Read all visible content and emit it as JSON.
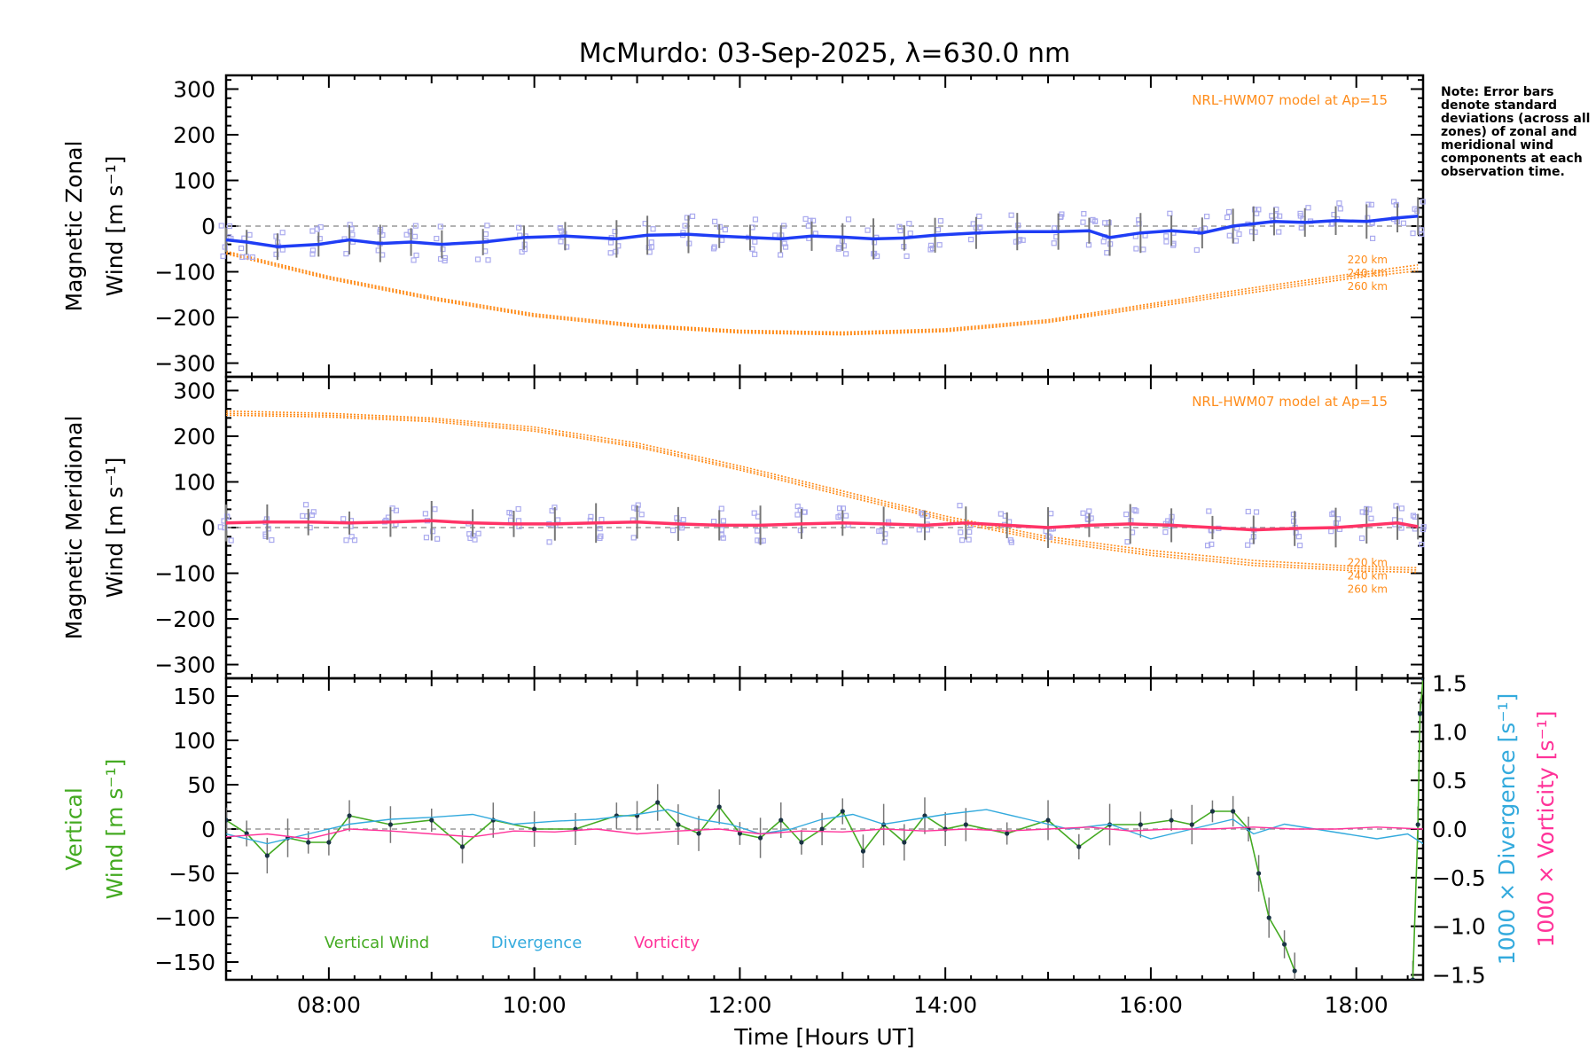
{
  "title": "McMurdo: 03-Sep-2025, λ=630.0 nm",
  "note": "Note: Error bars denote standard deviations (across all zones) of zonal and meridional wind components at each observation time.",
  "colors": {
    "zonal": "#1f3df5",
    "meridional": "#ff3366",
    "model": "#ff8c1a",
    "scatter": "#aaaaee",
    "vertical": "#44aa22",
    "divergence": "#33aadd",
    "vorticity": "#ff3399",
    "errorbar": "#777777",
    "zero": "#999999"
  },
  "chart_data": [
    {
      "type": "line",
      "name": "zonal",
      "ylabel": "Magnetic Zonal Wind [m s⁻¹]",
      "ylabel_lines": [
        "Magnetic Zonal",
        "Wind [m s⁻¹]"
      ],
      "xlim": [
        7.0,
        18.65
      ],
      "ylim": [
        -330,
        330
      ],
      "yticks": [
        -300,
        -200,
        -100,
        0,
        100,
        200,
        300
      ],
      "yticklabels": [
        "−300",
        "−200",
        "−100",
        "0",
        "100",
        "200",
        "300"
      ],
      "model_label": "NRL-HWM07 model at Ap=15",
      "model_levels": [
        "220 km",
        "240 km",
        "260 km"
      ],
      "model_curves": [
        {
          "name": "220 km",
          "x": [
            7.0,
            8.0,
            9.0,
            10.0,
            11.0,
            12.0,
            13.0,
            14.0,
            15.0,
            16.0,
            17.0,
            18.0,
            18.6
          ],
          "y": [
            -55,
            -110,
            -155,
            -192,
            -215,
            -228,
            -232,
            -225,
            -205,
            -170,
            -135,
            -103,
            -85
          ]
        },
        {
          "name": "240 km",
          "x": [
            7.0,
            8.0,
            9.0,
            10.0,
            11.0,
            12.0,
            13.0,
            14.0,
            15.0,
            16.0,
            17.0,
            18.0,
            18.6
          ],
          "y": [
            -58,
            -113,
            -158,
            -195,
            -218,
            -231,
            -235,
            -228,
            -208,
            -174,
            -140,
            -108,
            -92
          ]
        },
        {
          "name": "260 km",
          "x": [
            7.0,
            8.0,
            9.0,
            10.0,
            11.0,
            12.0,
            13.0,
            14.0,
            15.0,
            16.0,
            17.0,
            18.0,
            18.6
          ],
          "y": [
            -61,
            -116,
            -161,
            -198,
            -221,
            -234,
            -238,
            -231,
            -211,
            -178,
            -145,
            -113,
            -98
          ]
        }
      ],
      "series": [
        {
          "name": "zonal wind",
          "x": [
            7.0,
            7.2,
            7.5,
            7.9,
            8.2,
            8.5,
            8.8,
            9.1,
            9.5,
            9.9,
            10.3,
            10.8,
            11.1,
            11.5,
            11.8,
            12.1,
            12.4,
            12.7,
            13.0,
            13.3,
            13.6,
            13.9,
            14.3,
            14.7,
            15.1,
            15.4,
            15.6,
            15.9,
            16.2,
            16.5,
            16.8,
            17.0,
            17.2,
            17.5,
            17.8,
            18.1,
            18.4,
            18.6
          ],
          "y": [
            -30,
            -35,
            -45,
            -40,
            -30,
            -38,
            -35,
            -40,
            -35,
            -25,
            -22,
            -28,
            -20,
            -18,
            -22,
            -25,
            -28,
            -22,
            -24,
            -28,
            -26,
            -20,
            -15,
            -12,
            -12,
            -10,
            -25,
            -15,
            -10,
            -15,
            0,
            5,
            10,
            8,
            12,
            10,
            18,
            22
          ]
        }
      ]
    },
    {
      "type": "line",
      "name": "meridional",
      "ylabel": "Magnetic Meridional Wind [m s⁻¹]",
      "ylabel_lines": [
        "Magnetic Meridional",
        "Wind [m s⁻¹]"
      ],
      "xlim": [
        7.0,
        18.65
      ],
      "ylim": [
        -330,
        330
      ],
      "yticks": [
        -300,
        -200,
        -100,
        0,
        100,
        200,
        300
      ],
      "yticklabels": [
        "−300",
        "−200",
        "−100",
        "0",
        "100",
        "200",
        "300"
      ],
      "model_label": "NRL-HWM07 model at Ap=15",
      "model_levels": [
        "220 km",
        "240 km",
        "260 km"
      ],
      "model_curves": [
        {
          "name": "220 km",
          "x": [
            7.0,
            8.0,
            9.0,
            10.0,
            11.0,
            12.0,
            13.0,
            14.0,
            15.0,
            16.0,
            17.0,
            18.0,
            18.6
          ],
          "y": [
            255,
            250,
            240,
            220,
            185,
            135,
            80,
            25,
            -20,
            -50,
            -72,
            -85,
            -88
          ]
        },
        {
          "name": "240 km",
          "x": [
            7.0,
            8.0,
            9.0,
            10.0,
            11.0,
            12.0,
            13.0,
            14.0,
            15.0,
            16.0,
            17.0,
            18.0,
            18.6
          ],
          "y": [
            250,
            246,
            236,
            215,
            180,
            130,
            75,
            20,
            -25,
            -56,
            -78,
            -90,
            -93
          ]
        },
        {
          "name": "260 km",
          "x": [
            7.0,
            8.0,
            9.0,
            10.0,
            11.0,
            12.0,
            13.0,
            14.0,
            15.0,
            16.0,
            17.0,
            18.0,
            18.6
          ],
          "y": [
            246,
            242,
            232,
            211,
            176,
            126,
            70,
            16,
            -30,
            -61,
            -83,
            -95,
            -98
          ]
        }
      ],
      "series": [
        {
          "name": "meridional wind",
          "x": [
            7.0,
            7.4,
            7.8,
            8.2,
            8.6,
            9.0,
            9.4,
            9.8,
            10.2,
            10.6,
            11.0,
            11.4,
            11.8,
            12.2,
            12.6,
            13.0,
            13.4,
            13.8,
            14.2,
            14.6,
            15.0,
            15.4,
            15.8,
            16.2,
            16.6,
            17.0,
            17.4,
            17.8,
            18.1,
            18.4,
            18.6
          ],
          "y": [
            10,
            12,
            12,
            10,
            12,
            15,
            10,
            8,
            8,
            10,
            12,
            8,
            5,
            5,
            8,
            10,
            8,
            5,
            10,
            5,
            0,
            5,
            8,
            5,
            0,
            -5,
            -2,
            0,
            5,
            10,
            2
          ]
        }
      ]
    },
    {
      "type": "line",
      "name": "vertical",
      "ylabel": "Vertical Wind [m s⁻¹]",
      "ylabel_lines": [
        "Vertical",
        "Wind [m s⁻¹]"
      ],
      "y2label_div": "1000 × Divergence [s⁻¹]",
      "y2label_vor": "1000 × Vorticity [s⁻¹]",
      "xlabel": "Time [Hours UT]",
      "xlim": [
        7.0,
        18.65
      ],
      "ylim": [
        -170,
        170
      ],
      "yticks": [
        -150,
        -100,
        -50,
        0,
        50,
        100,
        150
      ],
      "yticklabels": [
        "−150",
        "−100",
        "−50",
        "0",
        "50",
        "100",
        "150"
      ],
      "y2lim": [
        -1.55,
        1.55
      ],
      "y2ticks": [
        -1.5,
        -1.0,
        -0.5,
        0.0,
        0.5,
        1.0,
        1.5
      ],
      "y2ticklabels": [
        "−1.5",
        "−1.0",
        "−0.5",
        "0.0",
        "0.5",
        "1.0",
        "1.5"
      ],
      "xticks": [
        8,
        10,
        12,
        14,
        16,
        18
      ],
      "xticklabels": [
        "08:00",
        "10:00",
        "12:00",
        "14:00",
        "16:00",
        "18:00"
      ],
      "legend": [
        "Vertical Wind",
        "Divergence",
        "Vorticity"
      ],
      "series": [
        {
          "name": "Vertical Wind",
          "axis": "left",
          "x": [
            7.0,
            7.2,
            7.4,
            7.6,
            7.8,
            8.0,
            8.2,
            8.6,
            9.0,
            9.3,
            9.6,
            10.0,
            10.4,
            10.8,
            11.0,
            11.2,
            11.4,
            11.6,
            11.8,
            12.0,
            12.2,
            12.4,
            12.6,
            12.8,
            13.0,
            13.2,
            13.4,
            13.6,
            13.8,
            14.0,
            14.2,
            14.6,
            15.0,
            15.3,
            15.6,
            15.9,
            16.2,
            16.4,
            16.6,
            16.8,
            16.95,
            17.05,
            17.15,
            17.3,
            17.4
          ],
          "y": [
            10,
            -5,
            -30,
            -10,
            -15,
            -15,
            15,
            5,
            10,
            -20,
            10,
            0,
            0,
            15,
            15,
            30,
            5,
            -5,
            25,
            -5,
            -10,
            10,
            -15,
            0,
            20,
            -25,
            5,
            -15,
            15,
            0,
            5,
            -5,
            10,
            -20,
            5,
            5,
            10,
            5,
            20,
            20,
            0,
            -50,
            -100,
            -130,
            -160
          ]
        },
        {
          "name": "Vertical Wind (end)",
          "axis": "left",
          "x": [
            18.55,
            18.6,
            18.62,
            18.65
          ],
          "y": [
            -170,
            5,
            130,
            170
          ]
        },
        {
          "name": "Divergence",
          "axis": "right",
          "x": [
            7.0,
            7.4,
            7.8,
            8.2,
            8.6,
            9.0,
            9.4,
            9.8,
            10.2,
            10.6,
            11.0,
            11.3,
            11.6,
            11.9,
            12.2,
            12.5,
            12.8,
            13.1,
            13.4,
            13.7,
            14.0,
            14.4,
            14.8,
            15.2,
            15.6,
            16.0,
            16.4,
            16.8,
            17.0,
            17.3,
            17.6,
            17.9,
            18.2,
            18.5,
            18.65
          ],
          "y": [
            -0.05,
            -0.15,
            -0.05,
            0.05,
            0.1,
            0.12,
            0.15,
            0.05,
            0.08,
            0.1,
            0.15,
            0.2,
            0.1,
            0.05,
            -0.05,
            0.0,
            0.1,
            0.15,
            0.05,
            0.1,
            0.15,
            0.2,
            0.1,
            0.0,
            0.05,
            -0.1,
            0.0,
            0.1,
            -0.05,
            0.05,
            0.0,
            -0.05,
            -0.1,
            -0.05,
            -0.15
          ]
        },
        {
          "name": "Vorticity",
          "axis": "right",
          "x": [
            7.0,
            7.4,
            7.8,
            8.2,
            8.6,
            9.0,
            9.4,
            9.8,
            10.2,
            10.6,
            11.0,
            11.4,
            11.8,
            12.2,
            12.6,
            13.0,
            13.4,
            13.8,
            14.2,
            14.6,
            15.0,
            15.4,
            15.8,
            16.2,
            16.6,
            17.0,
            17.4,
            17.8,
            18.2,
            18.65
          ],
          "y": [
            -0.08,
            -0.05,
            -0.1,
            0.0,
            -0.02,
            -0.05,
            -0.08,
            -0.02,
            -0.03,
            0.0,
            -0.05,
            -0.02,
            0.0,
            -0.05,
            -0.02,
            -0.03,
            0.0,
            -0.02,
            0.0,
            -0.02,
            0.0,
            0.02,
            -0.02,
            0.0,
            0.0,
            0.02,
            0.0,
            0.0,
            0.02,
            0.0
          ]
        }
      ]
    }
  ]
}
